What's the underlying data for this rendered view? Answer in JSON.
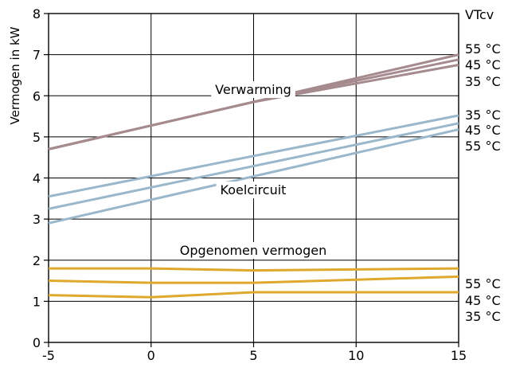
{
  "chart_data": {
    "type": "line",
    "title": "",
    "xlabel": "",
    "ylabel": "Vermogen in kW",
    "xlim": [
      -5,
      15
    ],
    "ylim": [
      0,
      8
    ],
    "x_ticks": [
      "-5",
      "0",
      "5",
      "10",
      "15"
    ],
    "y_ticks": [
      "0",
      "1",
      "2",
      "3",
      "4",
      "5",
      "6",
      "7",
      "8"
    ],
    "grid": true,
    "right_axis_title": "VTcv",
    "groups": [
      {
        "label": "Verwarming",
        "color": "#a58a8e",
        "series": [
          {
            "name": "55 °C",
            "x": [
              -5,
              5,
              15
            ],
            "y": [
              4.7,
              5.85,
              7.0
            ]
          },
          {
            "name": "45 °C",
            "x": [
              -5,
              5,
              15
            ],
            "y": [
              4.7,
              5.85,
              6.88
            ]
          },
          {
            "name": "35 °C",
            "x": [
              -5,
              5,
              15
            ],
            "y": [
              4.7,
              5.85,
              6.75
            ]
          }
        ],
        "right_labels": [
          "55 °C",
          "45 °C",
          "35 °C"
        ]
      },
      {
        "label": "Koelcircuit",
        "color": "#9bb7cb",
        "series": [
          {
            "name": "35 °C",
            "x": [
              -5,
              15
            ],
            "y": [
              3.55,
              5.52
            ]
          },
          {
            "name": "45 °C",
            "x": [
              -5,
              15
            ],
            "y": [
              3.25,
              5.33
            ]
          },
          {
            "name": "55 °C",
            "x": [
              -5,
              15
            ],
            "y": [
              2.9,
              5.18
            ]
          }
        ],
        "right_labels": [
          "35 °C",
          "45 °C",
          "55 °C"
        ]
      },
      {
        "label": "Opgenomen vermogen",
        "color": "#e0a92e",
        "series": [
          {
            "name": "55 °C",
            "x": [
              -5,
              0,
              5,
              15
            ],
            "y": [
              1.8,
              1.8,
              1.75,
              1.8
            ]
          },
          {
            "name": "45 °C",
            "x": [
              -5,
              0,
              5,
              15
            ],
            "y": [
              1.5,
              1.45,
              1.45,
              1.6
            ]
          },
          {
            "name": "35 °C",
            "x": [
              -5,
              0,
              5,
              15
            ],
            "y": [
              1.15,
              1.1,
              1.22,
              1.22
            ]
          }
        ],
        "right_labels": [
          "55 °C",
          "45 °C",
          "35 °C"
        ]
      }
    ]
  }
}
